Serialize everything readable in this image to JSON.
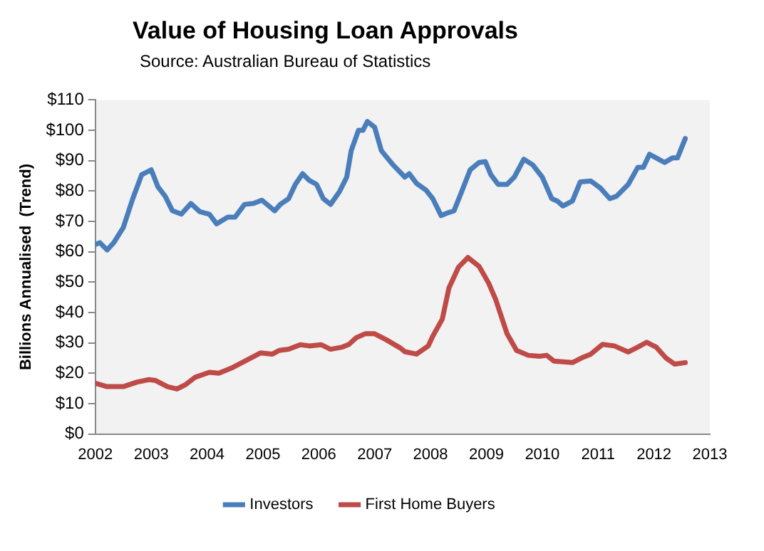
{
  "chart_data": {
    "type": "line",
    "title": "Value of Housing Loan Approvals",
    "subtitle": "Source: Australian Bureau of Statistics",
    "ylabel": "Billions Annualised  (Trend)",
    "xlim": [
      2002,
      2013
    ],
    "xticks": [
      2002,
      2003,
      2004,
      2005,
      2006,
      2007,
      2008,
      2009,
      2010,
      2011,
      2012,
      2013
    ],
    "ylim": [
      0,
      110
    ],
    "yticks": [
      {
        "value": 0,
        "label": "$0"
      },
      {
        "value": 10,
        "label": "$10"
      },
      {
        "value": 20,
        "label": "$20"
      },
      {
        "value": 30,
        "label": "$30"
      },
      {
        "value": 40,
        "label": "$40"
      },
      {
        "value": 50,
        "label": "$50"
      },
      {
        "value": 60,
        "label": "$60"
      },
      {
        "value": 70,
        "label": "$70"
      },
      {
        "value": 80,
        "label": "$80"
      },
      {
        "value": 90,
        "label": "$90"
      },
      {
        "value": 100,
        "label": "$100"
      },
      {
        "value": 110,
        "label": "$110"
      }
    ],
    "grid": false,
    "legend": "bottom",
    "marker": "none",
    "line_style": "solid",
    "series": [
      {
        "name": "Investors",
        "color": "#4a7ebb",
        "x": [
          2002.0,
          2002.08,
          2002.21,
          2002.33,
          2002.5,
          2002.67,
          2002.83,
          2003.0,
          2003.12,
          2003.25,
          2003.38,
          2003.54,
          2003.71,
          2003.87,
          2004.04,
          2004.17,
          2004.37,
          2004.5,
          2004.67,
          2004.83,
          2004.98,
          2005.21,
          2005.31,
          2005.46,
          2005.58,
          2005.71,
          2005.83,
          2005.96,
          2006.08,
          2006.21,
          2006.37,
          2006.5,
          2006.58,
          2006.71,
          2006.79,
          2006.87,
          2007.0,
          2007.12,
          2007.33,
          2007.54,
          2007.62,
          2007.75,
          2007.92,
          2008.04,
          2008.19,
          2008.29,
          2008.42,
          2008.54,
          2008.71,
          2008.87,
          2008.98,
          2009.08,
          2009.21,
          2009.37,
          2009.5,
          2009.67,
          2009.83,
          2010.0,
          2010.17,
          2010.27,
          2010.37,
          2010.54,
          2010.68,
          2010.87,
          2011.04,
          2011.21,
          2011.33,
          2011.54,
          2011.71,
          2011.81,
          2011.92,
          2012.04,
          2012.19,
          2012.33,
          2012.42,
          2012.56
        ],
        "values": [
          62.4,
          63,
          60.6,
          63,
          68,
          77.5,
          85.4,
          87,
          81.4,
          78.3,
          73.5,
          72.4,
          75.9,
          73.2,
          72.4,
          69.2,
          71.4,
          71.4,
          75.6,
          75.9,
          77,
          73.5,
          75.6,
          77.5,
          82.2,
          85.7,
          83.5,
          82.2,
          77.5,
          75.6,
          79.8,
          84.6,
          93.3,
          100,
          100,
          102.9,
          101,
          93.3,
          88.6,
          84.6,
          85.7,
          82.5,
          80.3,
          77.5,
          71.9,
          72.7,
          73.5,
          79,
          87,
          89.4,
          89.7,
          85.4,
          82.2,
          82.2,
          84.6,
          90.5,
          88.6,
          84.6,
          77.5,
          76.7,
          75.1,
          76.7,
          83,
          83.3,
          81,
          77.5,
          78.3,
          82.2,
          87.8,
          87.8,
          92.1,
          90.9,
          89.4,
          90.9,
          90.9,
          97.3
        ]
      },
      {
        "name": "First Home Buyers",
        "color": "#be4b48",
        "x": [
          2002.0,
          2002.21,
          2002.5,
          2002.75,
          2002.96,
          2003.08,
          2003.29,
          2003.46,
          2003.62,
          2003.79,
          2004.04,
          2004.21,
          2004.46,
          2004.71,
          2004.96,
          2005.17,
          2005.29,
          2005.46,
          2005.67,
          2005.83,
          2006.04,
          2006.21,
          2006.42,
          2006.54,
          2006.67,
          2006.83,
          2007.0,
          2007.21,
          2007.46,
          2007.54,
          2007.75,
          2007.96,
          2008.04,
          2008.21,
          2008.33,
          2008.5,
          2008.67,
          2008.87,
          2009.04,
          2009.17,
          2009.37,
          2009.54,
          2009.75,
          2009.96,
          2010.08,
          2010.21,
          2010.54,
          2010.71,
          2010.87,
          2011.08,
          2011.29,
          2011.54,
          2011.71,
          2011.87,
          2012.04,
          2012.21,
          2012.37,
          2012.56
        ],
        "values": [
          16.7,
          15.6,
          15.6,
          17.1,
          17.9,
          17.6,
          15.6,
          14.8,
          16.3,
          18.7,
          20.3,
          20,
          21.9,
          24.3,
          26.7,
          26.3,
          27.5,
          27.9,
          29.4,
          29,
          29.4,
          27.9,
          28.6,
          29.5,
          31.7,
          33,
          33,
          31,
          28.3,
          27.1,
          26.3,
          29,
          32.2,
          37.8,
          48.1,
          54.9,
          58.1,
          55.2,
          49.7,
          44.1,
          33,
          27.5,
          25.9,
          25.6,
          25.9,
          24,
          23.5,
          25.1,
          26.3,
          29.5,
          29,
          27,
          28.6,
          30.2,
          28.6,
          25.1,
          23,
          23.5
        ]
      }
    ]
  }
}
